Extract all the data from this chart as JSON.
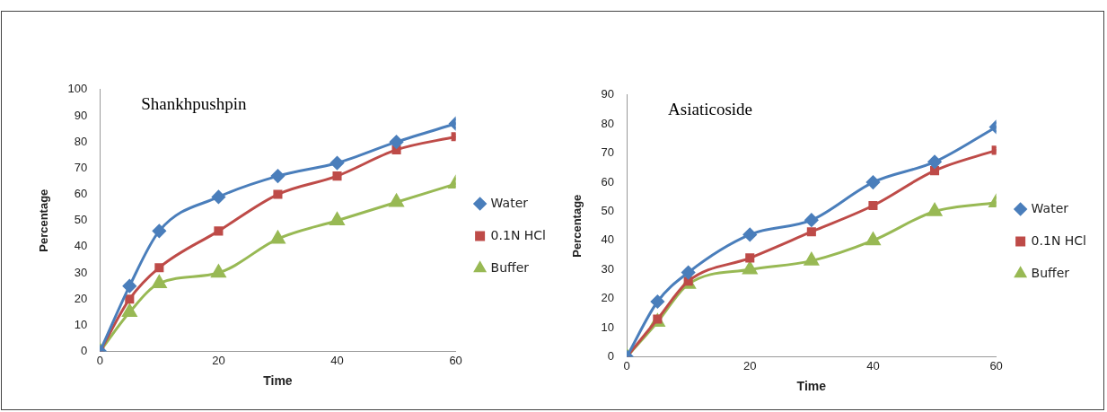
{
  "chart_data": [
    {
      "type": "line",
      "title": "Shankhpushpin",
      "xlabel": "Time",
      "ylabel": "Percentage",
      "x": [
        0,
        5,
        10,
        20,
        30,
        40,
        50,
        60
      ],
      "xlim": [
        0,
        60
      ],
      "xticks": [
        0,
        20,
        40,
        60
      ],
      "ylim": [
        0,
        100
      ],
      "yticks": [
        0,
        10,
        20,
        30,
        40,
        50,
        60,
        70,
        80,
        90,
        100
      ],
      "grid": false,
      "legend": "right",
      "line_style": "solid",
      "series": [
        {
          "name": "Water",
          "color": "#4a7ebb",
          "marker": "diamond",
          "values": [
            0,
            25,
            46,
            59,
            67,
            72,
            80,
            87
          ]
        },
        {
          "name": "0.1N HCl",
          "color": "#be4b48",
          "marker": "square",
          "values": [
            0,
            20,
            32,
            46,
            60,
            67,
            77,
            82
          ]
        },
        {
          "name": "Buffer",
          "color": "#98b954",
          "marker": "triangle",
          "values": [
            0,
            15,
            26,
            30,
            43,
            50,
            57,
            64
          ]
        }
      ]
    },
    {
      "type": "line",
      "title": "Asiaticoside",
      "xlabel": "Time",
      "ylabel": "Percentage",
      "x": [
        0,
        5,
        10,
        20,
        30,
        40,
        50,
        60
      ],
      "xlim": [
        0,
        60
      ],
      "xticks": [
        0,
        20,
        40,
        60
      ],
      "ylim": [
        0,
        90
      ],
      "yticks": [
        0,
        10,
        20,
        30,
        40,
        50,
        60,
        70,
        80,
        90
      ],
      "grid": false,
      "legend": "right",
      "line_style": "solid",
      "series": [
        {
          "name": "Water",
          "color": "#4a7ebb",
          "marker": "diamond",
          "values": [
            0,
            19,
            29,
            42,
            47,
            60,
            67,
            79
          ]
        },
        {
          "name": "0.1N HCl",
          "color": "#be4b48",
          "marker": "square",
          "values": [
            0,
            13,
            26,
            34,
            43,
            52,
            64,
            71
          ]
        },
        {
          "name": "Buffer",
          "color": "#98b954",
          "marker": "triangle",
          "values": [
            0,
            12,
            25,
            30,
            33,
            40,
            50,
            53
          ]
        }
      ]
    }
  ]
}
